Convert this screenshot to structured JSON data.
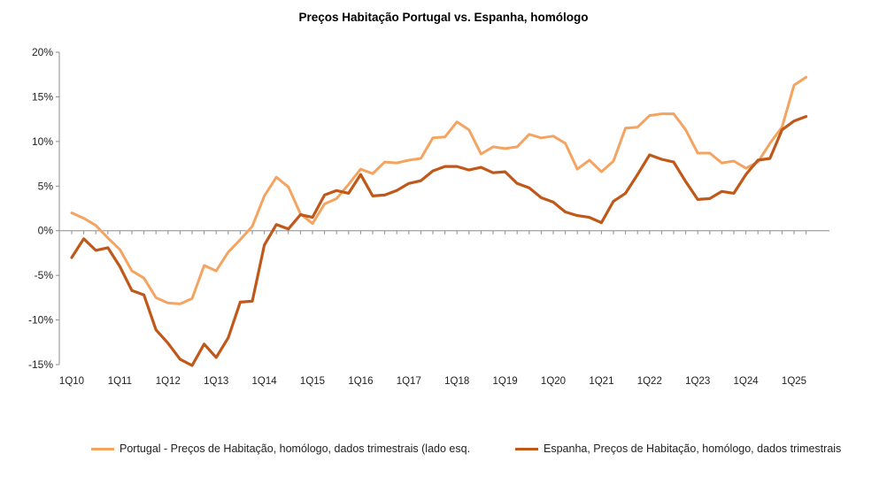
{
  "chart_data": {
    "type": "line",
    "title": "Preços Habitação Portugal vs. Espanha, homólogo",
    "xlabel": "",
    "ylabel": "",
    "ylim": [
      -15,
      20
    ],
    "yticks": [
      "-15%",
      "-10%",
      "-5%",
      "0%",
      "5%",
      "10%",
      "15%",
      "20%"
    ],
    "x_tick_labels": [
      "1Q10",
      "1Q11",
      "1Q12",
      "1Q13",
      "1Q14",
      "1Q15",
      "1Q16",
      "1Q17",
      "1Q18",
      "1Q19",
      "1Q20",
      "1Q21",
      "1Q22",
      "1Q23",
      "1Q24",
      "1Q25"
    ],
    "x": [
      "1Q10",
      "2Q10",
      "3Q10",
      "4Q10",
      "1Q11",
      "2Q11",
      "3Q11",
      "4Q11",
      "1Q12",
      "2Q12",
      "3Q12",
      "4Q12",
      "1Q13",
      "2Q13",
      "3Q13",
      "4Q13",
      "1Q14",
      "2Q14",
      "3Q14",
      "4Q14",
      "1Q15",
      "2Q15",
      "3Q15",
      "4Q15",
      "1Q16",
      "2Q16",
      "3Q16",
      "4Q16",
      "1Q17",
      "2Q17",
      "3Q17",
      "4Q17",
      "1Q18",
      "2Q18",
      "3Q18",
      "4Q18",
      "1Q19",
      "2Q19",
      "3Q19",
      "4Q19",
      "1Q20",
      "2Q20",
      "3Q20",
      "4Q20",
      "1Q21",
      "2Q21",
      "3Q21",
      "4Q21",
      "1Q22",
      "2Q22",
      "3Q22",
      "4Q22",
      "1Q23",
      "2Q23",
      "3Q23",
      "4Q23",
      "1Q24",
      "2Q24",
      "3Q24",
      "4Q24",
      "1Q25",
      "2Q25"
    ],
    "grid": false,
    "legend_position": "bottom",
    "series": [
      {
        "name": "Portugal - Preços de Habitação, homólogo, dados trimestrais (lado esq.",
        "color": "#f4a460",
        "values": [
          2.0,
          1.4,
          0.6,
          -0.8,
          -2.1,
          -4.5,
          -5.3,
          -7.5,
          -8.1,
          -8.2,
          -7.6,
          -3.9,
          -4.5,
          -2.4,
          -1.0,
          0.5,
          3.9,
          6.0,
          4.9,
          1.9,
          0.8,
          3.0,
          3.6,
          5.2,
          6.9,
          6.4,
          7.7,
          7.6,
          7.9,
          8.1,
          10.4,
          10.5,
          12.2,
          11.3,
          8.6,
          9.4,
          9.2,
          9.4,
          10.8,
          10.4,
          10.6,
          9.8,
          6.9,
          7.9,
          6.6,
          7.8,
          11.5,
          11.6,
          12.9,
          13.1,
          13.1,
          11.3,
          8.7,
          8.7,
          7.6,
          7.8,
          7.0,
          7.7,
          9.8,
          11.6,
          16.3,
          17.2
        ]
      },
      {
        "name": "Espanha, Preços de Habitação, homólogo, dados trimestrais",
        "color": "#c0581a",
        "values": [
          -3.0,
          -0.9,
          -2.2,
          -1.9,
          -4.0,
          -6.7,
          -7.2,
          -11.1,
          -12.6,
          -14.4,
          -15.1,
          -12.7,
          -14.2,
          -12.0,
          -8.0,
          -7.9,
          -1.6,
          0.7,
          0.2,
          1.8,
          1.5,
          4.0,
          4.5,
          4.2,
          6.3,
          3.9,
          4.0,
          4.5,
          5.3,
          5.6,
          6.7,
          7.2,
          7.2,
          6.8,
          7.1,
          6.5,
          6.6,
          5.3,
          4.8,
          3.7,
          3.2,
          2.1,
          1.7,
          1.5,
          0.9,
          3.3,
          4.2,
          6.3,
          8.5,
          8.0,
          7.7,
          5.5,
          3.5,
          3.6,
          4.4,
          4.2,
          6.3,
          7.9,
          8.1,
          11.3,
          12.3,
          12.8
        ]
      }
    ]
  }
}
